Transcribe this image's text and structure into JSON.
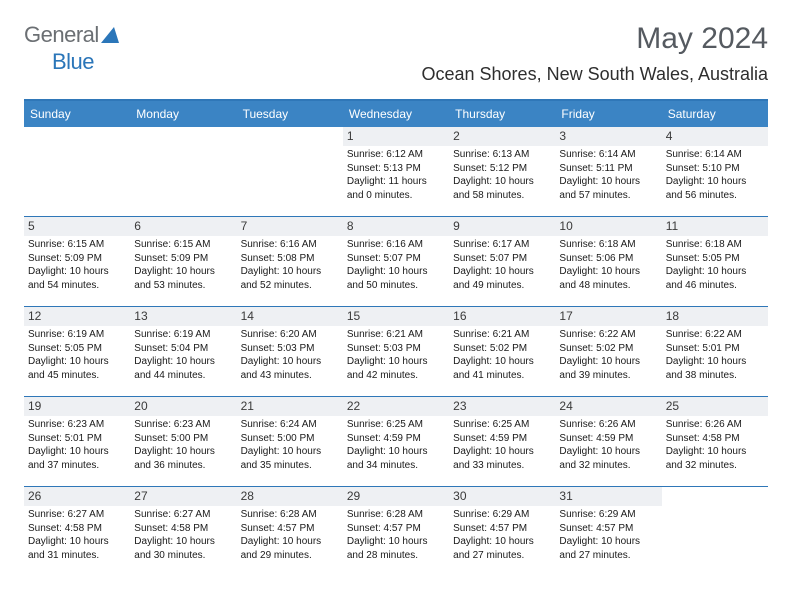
{
  "logo": {
    "part1": "General",
    "part2": "Blue"
  },
  "title": "May 2024",
  "subtitle": "Ocean Shores, New South Wales, Australia",
  "colors": {
    "header_bg": "#3b84c4",
    "border": "#2f77b8",
    "daynum_bg": "#eef0f3",
    "logo_gray": "#6b6f73",
    "logo_blue": "#2b76b9",
    "title_gray": "#555a60"
  },
  "typography": {
    "body_pt": 10,
    "header_pt": 12,
    "title_pt": 30,
    "subtitle_pt": 18
  },
  "dayheads": [
    "Sunday",
    "Monday",
    "Tuesday",
    "Wednesday",
    "Thursday",
    "Friday",
    "Saturday"
  ],
  "weeks": [
    [
      null,
      null,
      null,
      {
        "n": "1",
        "sr": "Sunrise: 6:12 AM",
        "ss": "Sunset: 5:13 PM",
        "d1": "Daylight: 11 hours",
        "d2": "and 0 minutes."
      },
      {
        "n": "2",
        "sr": "Sunrise: 6:13 AM",
        "ss": "Sunset: 5:12 PM",
        "d1": "Daylight: 10 hours",
        "d2": "and 58 minutes."
      },
      {
        "n": "3",
        "sr": "Sunrise: 6:14 AM",
        "ss": "Sunset: 5:11 PM",
        "d1": "Daylight: 10 hours",
        "d2": "and 57 minutes."
      },
      {
        "n": "4",
        "sr": "Sunrise: 6:14 AM",
        "ss": "Sunset: 5:10 PM",
        "d1": "Daylight: 10 hours",
        "d2": "and 56 minutes."
      }
    ],
    [
      {
        "n": "5",
        "sr": "Sunrise: 6:15 AM",
        "ss": "Sunset: 5:09 PM",
        "d1": "Daylight: 10 hours",
        "d2": "and 54 minutes."
      },
      {
        "n": "6",
        "sr": "Sunrise: 6:15 AM",
        "ss": "Sunset: 5:09 PM",
        "d1": "Daylight: 10 hours",
        "d2": "and 53 minutes."
      },
      {
        "n": "7",
        "sr": "Sunrise: 6:16 AM",
        "ss": "Sunset: 5:08 PM",
        "d1": "Daylight: 10 hours",
        "d2": "and 52 minutes."
      },
      {
        "n": "8",
        "sr": "Sunrise: 6:16 AM",
        "ss": "Sunset: 5:07 PM",
        "d1": "Daylight: 10 hours",
        "d2": "and 50 minutes."
      },
      {
        "n": "9",
        "sr": "Sunrise: 6:17 AM",
        "ss": "Sunset: 5:07 PM",
        "d1": "Daylight: 10 hours",
        "d2": "and 49 minutes."
      },
      {
        "n": "10",
        "sr": "Sunrise: 6:18 AM",
        "ss": "Sunset: 5:06 PM",
        "d1": "Daylight: 10 hours",
        "d2": "and 48 minutes."
      },
      {
        "n": "11",
        "sr": "Sunrise: 6:18 AM",
        "ss": "Sunset: 5:05 PM",
        "d1": "Daylight: 10 hours",
        "d2": "and 46 minutes."
      }
    ],
    [
      {
        "n": "12",
        "sr": "Sunrise: 6:19 AM",
        "ss": "Sunset: 5:05 PM",
        "d1": "Daylight: 10 hours",
        "d2": "and 45 minutes."
      },
      {
        "n": "13",
        "sr": "Sunrise: 6:19 AM",
        "ss": "Sunset: 5:04 PM",
        "d1": "Daylight: 10 hours",
        "d2": "and 44 minutes."
      },
      {
        "n": "14",
        "sr": "Sunrise: 6:20 AM",
        "ss": "Sunset: 5:03 PM",
        "d1": "Daylight: 10 hours",
        "d2": "and 43 minutes."
      },
      {
        "n": "15",
        "sr": "Sunrise: 6:21 AM",
        "ss": "Sunset: 5:03 PM",
        "d1": "Daylight: 10 hours",
        "d2": "and 42 minutes."
      },
      {
        "n": "16",
        "sr": "Sunrise: 6:21 AM",
        "ss": "Sunset: 5:02 PM",
        "d1": "Daylight: 10 hours",
        "d2": "and 41 minutes."
      },
      {
        "n": "17",
        "sr": "Sunrise: 6:22 AM",
        "ss": "Sunset: 5:02 PM",
        "d1": "Daylight: 10 hours",
        "d2": "and 39 minutes."
      },
      {
        "n": "18",
        "sr": "Sunrise: 6:22 AM",
        "ss": "Sunset: 5:01 PM",
        "d1": "Daylight: 10 hours",
        "d2": "and 38 minutes."
      }
    ],
    [
      {
        "n": "19",
        "sr": "Sunrise: 6:23 AM",
        "ss": "Sunset: 5:01 PM",
        "d1": "Daylight: 10 hours",
        "d2": "and 37 minutes."
      },
      {
        "n": "20",
        "sr": "Sunrise: 6:23 AM",
        "ss": "Sunset: 5:00 PM",
        "d1": "Daylight: 10 hours",
        "d2": "and 36 minutes."
      },
      {
        "n": "21",
        "sr": "Sunrise: 6:24 AM",
        "ss": "Sunset: 5:00 PM",
        "d1": "Daylight: 10 hours",
        "d2": "and 35 minutes."
      },
      {
        "n": "22",
        "sr": "Sunrise: 6:25 AM",
        "ss": "Sunset: 4:59 PM",
        "d1": "Daylight: 10 hours",
        "d2": "and 34 minutes."
      },
      {
        "n": "23",
        "sr": "Sunrise: 6:25 AM",
        "ss": "Sunset: 4:59 PM",
        "d1": "Daylight: 10 hours",
        "d2": "and 33 minutes."
      },
      {
        "n": "24",
        "sr": "Sunrise: 6:26 AM",
        "ss": "Sunset: 4:59 PM",
        "d1": "Daylight: 10 hours",
        "d2": "and 32 minutes."
      },
      {
        "n": "25",
        "sr": "Sunrise: 6:26 AM",
        "ss": "Sunset: 4:58 PM",
        "d1": "Daylight: 10 hours",
        "d2": "and 32 minutes."
      }
    ],
    [
      {
        "n": "26",
        "sr": "Sunrise: 6:27 AM",
        "ss": "Sunset: 4:58 PM",
        "d1": "Daylight: 10 hours",
        "d2": "and 31 minutes."
      },
      {
        "n": "27",
        "sr": "Sunrise: 6:27 AM",
        "ss": "Sunset: 4:58 PM",
        "d1": "Daylight: 10 hours",
        "d2": "and 30 minutes."
      },
      {
        "n": "28",
        "sr": "Sunrise: 6:28 AM",
        "ss": "Sunset: 4:57 PM",
        "d1": "Daylight: 10 hours",
        "d2": "and 29 minutes."
      },
      {
        "n": "29",
        "sr": "Sunrise: 6:28 AM",
        "ss": "Sunset: 4:57 PM",
        "d1": "Daylight: 10 hours",
        "d2": "and 28 minutes."
      },
      {
        "n": "30",
        "sr": "Sunrise: 6:29 AM",
        "ss": "Sunset: 4:57 PM",
        "d1": "Daylight: 10 hours",
        "d2": "and 27 minutes."
      },
      {
        "n": "31",
        "sr": "Sunrise: 6:29 AM",
        "ss": "Sunset: 4:57 PM",
        "d1": "Daylight: 10 hours",
        "d2": "and 27 minutes."
      },
      null
    ]
  ]
}
